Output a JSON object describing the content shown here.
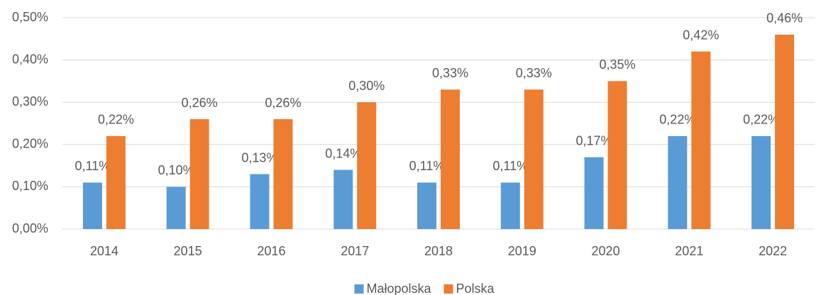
{
  "chart_data": {
    "type": "bar",
    "categories": [
      "2014",
      "2015",
      "2016",
      "2017",
      "2018",
      "2019",
      "2020",
      "2021",
      "2022"
    ],
    "series": [
      {
        "name": "Małopolska",
        "color": "#5b9bd5",
        "values": [
          0.11,
          0.1,
          0.13,
          0.14,
          0.11,
          0.11,
          0.17,
          0.22,
          0.22
        ],
        "value_labels": [
          "0,11%",
          "0,10%",
          "0,13%",
          "0,14%",
          "0,11%",
          "0,11%",
          "0,17%",
          "0,22%",
          "0,22%"
        ]
      },
      {
        "name": "Polska",
        "color": "#ed7d31",
        "values": [
          0.22,
          0.26,
          0.26,
          0.3,
          0.33,
          0.33,
          0.35,
          0.42,
          0.46
        ],
        "value_labels": [
          "0,22%",
          "0,26%",
          "0,26%",
          "0,30%",
          "0,33%",
          "0,33%",
          "0,35%",
          "0,42%",
          "0,46%"
        ]
      }
    ],
    "ylim": [
      0,
      0.5
    ],
    "yticks": [
      {
        "value": 0,
        "label": "0,00%"
      },
      {
        "value": 0.1,
        "label": "0,10%"
      },
      {
        "value": 0.2,
        "label": "0,20%"
      },
      {
        "value": 0.3,
        "label": "0,30%"
      },
      {
        "value": 0.4,
        "label": "0,40%"
      },
      {
        "value": 0.5,
        "label": "0,50%"
      }
    ],
    "grid": true,
    "legend": "bottom"
  }
}
